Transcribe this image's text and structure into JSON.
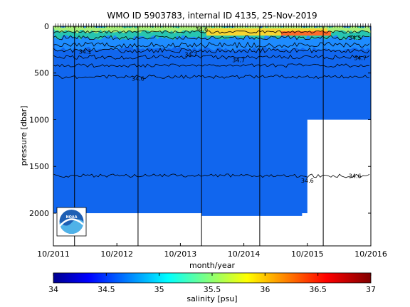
{
  "chart_data": {
    "type": "heatmap",
    "title": "WMO ID 5903783, internal ID 4135, 25-Nov-2019",
    "xlabel": "month/year",
    "ylabel": "pressure [dbar]",
    "x_ticks": [
      "10/2011",
      "10/2012",
      "10/2013",
      "10/2014",
      "10/2015",
      "10/2016"
    ],
    "x_range": [
      "10/2011",
      "10/2016"
    ],
    "y_ticks": [
      0,
      500,
      1000,
      1500,
      2000
    ],
    "y_range": [
      0,
      2350
    ],
    "y_reversed": true,
    "colorbar": {
      "label": "salinity [psu]",
      "range": [
        34,
        37
      ],
      "ticks": [
        "34",
        "34.5",
        "35",
        "35.5",
        "36",
        "36.5",
        "37"
      ],
      "colormap": "jet"
    },
    "profile_depth_dbar": [
      {
        "x": "10/2011",
        "bottom": 2000
      },
      {
        "x": "01/2014",
        "bottom": 2000
      },
      {
        "x": "02/2014",
        "bottom": 2030
      },
      {
        "x": "09/2015",
        "bottom": 2000
      },
      {
        "x": "10/2015",
        "bottom": 1000
      }
    ],
    "contour_labels": [
      {
        "text": "34.1",
        "x": "04/2012",
        "pressure": 270
      },
      {
        "text": "34.7",
        "x": "12/2013",
        "pressure": 300
      },
      {
        "text": "34.7",
        "x": "09/2014",
        "pressure": 360
      },
      {
        "text": "34.7",
        "x": "08/2016",
        "pressure": 340
      },
      {
        "text": "34.6",
        "x": "02/2013",
        "pressure": 560
      },
      {
        "text": "34.6",
        "x": "10/2015",
        "pressure": 1650
      },
      {
        "text": "34.6",
        "x": "07/2016",
        "pressure": 1600
      },
      {
        "text": "34.6",
        "x": "02/2014",
        "pressure": 30
      },
      {
        "text": "34.5",
        "x": "07/2016",
        "pressure": 120
      }
    ],
    "vertical_lines": [
      "02/2012",
      "02/2013",
      "02/2014",
      "01/2015",
      "01/2016"
    ],
    "grid": false,
    "legend": "bottom"
  },
  "logo": {
    "text": "NOAA"
  }
}
